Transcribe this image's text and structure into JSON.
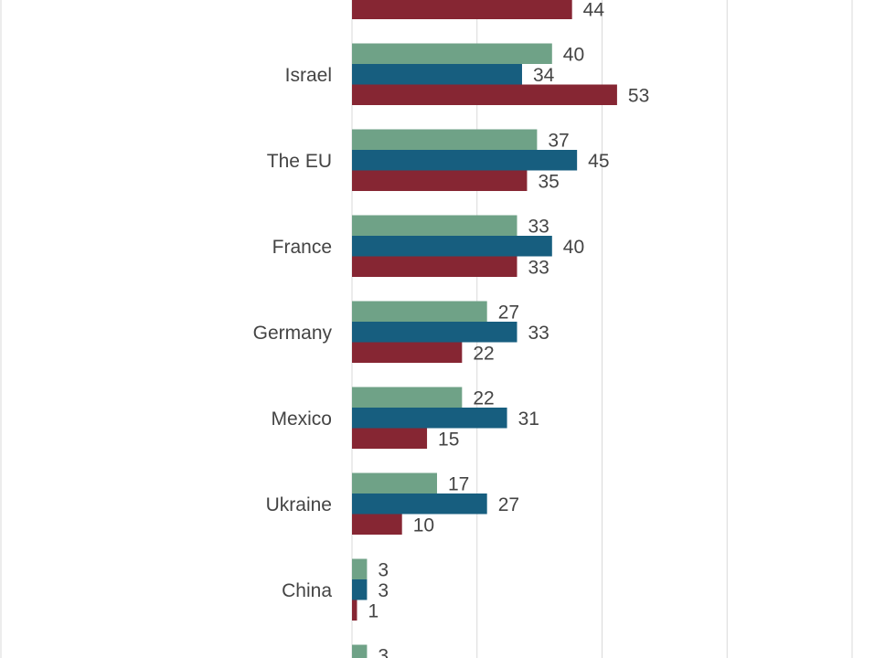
{
  "chart_data": {
    "type": "bar",
    "orientation": "horizontal",
    "categories": [
      "",
      "Israel",
      "The EU",
      "France",
      "Germany",
      "Mexico",
      "Ukraine",
      "China",
      ""
    ],
    "series": [
      {
        "color": "#6fa287",
        "values": [
          null,
          40,
          37,
          33,
          27,
          22,
          17,
          3,
          3
        ]
      },
      {
        "color": "#175e7f",
        "values": [
          null,
          34,
          45,
          40,
          33,
          31,
          27,
          3,
          null
        ]
      },
      {
        "color": "#862633",
        "values": [
          44,
          53,
          35,
          33,
          22,
          15,
          10,
          1,
          null
        ]
      }
    ],
    "xlim": [
      0,
      100
    ],
    "grid": true,
    "legend": "none"
  }
}
